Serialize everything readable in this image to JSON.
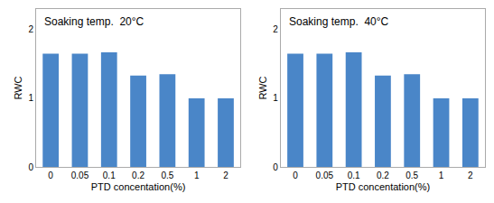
{
  "chart_data": [
    {
      "type": "bar",
      "title": "Soaking temp.  20°C",
      "categories": [
        "0",
        "0.05",
        "0.1",
        "0.2",
        "0.5",
        "1",
        "2"
      ],
      "values": [
        1.65,
        1.65,
        1.67,
        1.33,
        1.35,
        1.0,
        1.0
      ],
      "color": "#4a86c8",
      "xlabel": "PTD concentation(%)",
      "ylabel": "RWC",
      "ylim": [
        0,
        2.3
      ],
      "yticks": [
        0,
        1,
        2
      ],
      "grid": false
    },
    {
      "type": "bar",
      "title": "Soaking temp.  40°C",
      "categories": [
        "0",
        "0.05",
        "0.1",
        "0.2",
        "0.5",
        "1",
        "2"
      ],
      "values": [
        1.65,
        1.65,
        1.67,
        1.33,
        1.35,
        1.0,
        1.0
      ],
      "color": "#4a86c8",
      "xlabel": "PTD concentation(%)",
      "ylabel": "RWC",
      "ylim": [
        0,
        2.3
      ],
      "yticks": [
        0,
        1,
        2
      ],
      "grid": false
    }
  ]
}
